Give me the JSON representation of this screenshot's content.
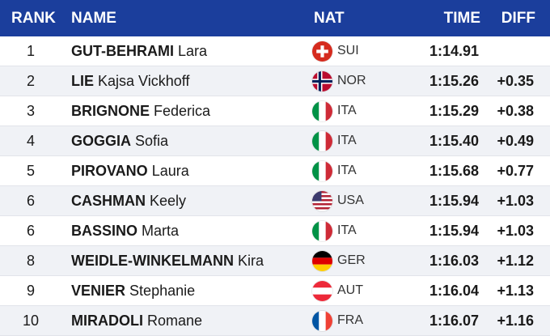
{
  "headers": {
    "rank": "RANK",
    "name": "NAME",
    "nat": "NAT",
    "time": "TIME",
    "diff": "DIFF"
  },
  "colors": {
    "header_bg": "#1b3e9c",
    "header_text": "#ffffff",
    "row_alt": "#f0f2f6"
  },
  "rows": [
    {
      "rank": "1",
      "last": "GUT-BEHRAMI",
      "first": "Lara",
      "flag": "sui-flag-icon",
      "nat": "SUI",
      "time": "1:14.91",
      "diff": ""
    },
    {
      "rank": "2",
      "last": "LIE",
      "first": "Kajsa Vickhoff",
      "flag": "nor-flag-icon",
      "nat": "NOR",
      "time": "1:15.26",
      "diff": "+0.35"
    },
    {
      "rank": "3",
      "last": "BRIGNONE",
      "first": "Federica",
      "flag": "ita-flag-icon",
      "nat": "ITA",
      "time": "1:15.29",
      "diff": "+0.38"
    },
    {
      "rank": "4",
      "last": "GOGGIA",
      "first": "Sofia",
      "flag": "ita-flag-icon",
      "nat": "ITA",
      "time": "1:15.40",
      "diff": "+0.49"
    },
    {
      "rank": "5",
      "last": "PIROVANO",
      "first": "Laura",
      "flag": "ita-flag-icon",
      "nat": "ITA",
      "time": "1:15.68",
      "diff": "+0.77"
    },
    {
      "rank": "6",
      "last": "CASHMAN",
      "first": "Keely",
      "flag": "usa-flag-icon",
      "nat": "USA",
      "time": "1:15.94",
      "diff": "+1.03"
    },
    {
      "rank": "6",
      "last": "BASSINO",
      "first": "Marta",
      "flag": "ita-flag-icon",
      "nat": "ITA",
      "time": "1:15.94",
      "diff": "+1.03"
    },
    {
      "rank": "8",
      "last": "WEIDLE-WINKELMANN",
      "first": "Kira",
      "flag": "ger-flag-icon",
      "nat": "GER",
      "time": "1:16.03",
      "diff": "+1.12"
    },
    {
      "rank": "9",
      "last": "VENIER",
      "first": "Stephanie",
      "flag": "aut-flag-icon",
      "nat": "AUT",
      "time": "1:16.04",
      "diff": "+1.13"
    },
    {
      "rank": "10",
      "last": "MIRADOLI",
      "first": "Romane",
      "flag": "fra-flag-icon",
      "nat": "FRA",
      "time": "1:16.07",
      "diff": "+1.16"
    }
  ]
}
